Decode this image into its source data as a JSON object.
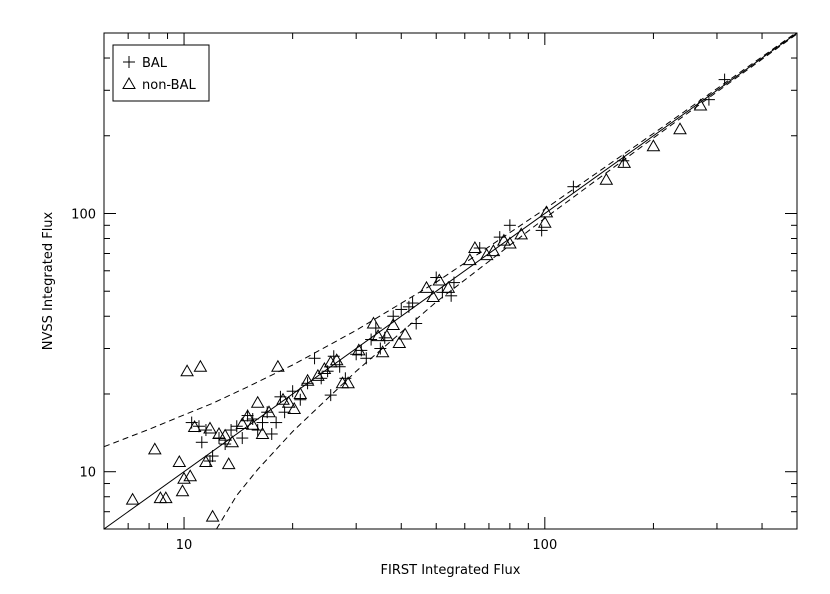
{
  "chart_data": {
    "type": "scatter",
    "title": "",
    "xlabel": "FIRST Integrated Flux",
    "ylabel": "NVSS Integrated Flux",
    "xscale": "log",
    "yscale": "log",
    "xlim": [
      6,
      500
    ],
    "ylim": [
      6,
      500
    ],
    "x_ticks": [
      10,
      100
    ],
    "x_tick_labels": [
      "10",
      "100"
    ],
    "y_ticks": [
      10,
      100
    ],
    "y_tick_labels": [
      "10",
      "100"
    ],
    "grid": false,
    "legend": {
      "placement": "top-left",
      "entries": [
        {
          "marker": "plus",
          "label": "BAL"
        },
        {
          "marker": "triangle",
          "label": "non-BAL"
        }
      ]
    },
    "lines": [
      {
        "style": "solid",
        "description": "one-to-one",
        "x": [
          6,
          500
        ],
        "y": [
          6,
          500
        ]
      },
      {
        "style": "dashed",
        "x": [
          6,
          8,
          10,
          12,
          15,
          20,
          30,
          50,
          100,
          200,
          500
        ],
        "y": [
          12.5,
          14.6,
          16.6,
          18.4,
          21.3,
          25.9,
          35.3,
          54.2,
          104,
          204,
          504
        ]
      },
      {
        "style": "dashed",
        "x": [
          12.3,
          14,
          16,
          20,
          30,
          50,
          100,
          200,
          500
        ],
        "y": [
          6,
          8.1,
          10.2,
          14.3,
          24.5,
          45.4,
          95.8,
          196,
          496
        ]
      }
    ],
    "series": [
      {
        "name": "BAL",
        "marker": "plus",
        "points": [
          [
            10.5,
            15.5
          ],
          [
            11.0,
            15.0
          ],
          [
            11.2,
            13.0
          ],
          [
            11.5,
            14.5
          ],
          [
            11.8,
            11.0
          ],
          [
            12.0,
            11.5
          ],
          [
            12.5,
            13.5
          ],
          [
            13.0,
            12.8
          ],
          [
            13.5,
            14.5
          ],
          [
            14.0,
            15.0
          ],
          [
            14.5,
            13.5
          ],
          [
            15.0,
            16.5
          ],
          [
            15.5,
            16.0
          ],
          [
            16.0,
            14.5
          ],
          [
            16.5,
            15.5
          ],
          [
            17.0,
            17.0
          ],
          [
            17.5,
            14.0
          ],
          [
            18.0,
            15.5
          ],
          [
            18.5,
            19.5
          ],
          [
            19.0,
            17.0
          ],
          [
            20.0,
            20.5
          ],
          [
            21.0,
            19.0
          ],
          [
            22.0,
            22.0
          ],
          [
            23.0,
            27.5
          ],
          [
            24.0,
            23.0
          ],
          [
            25.0,
            24.5
          ],
          [
            25.5,
            19.8
          ],
          [
            26.0,
            28.0
          ],
          [
            27.0,
            25.5
          ],
          [
            28.0,
            23.0
          ],
          [
            30.0,
            28.5
          ],
          [
            31.0,
            29.5
          ],
          [
            32.0,
            27.5
          ],
          [
            33.0,
            32.5
          ],
          [
            34.0,
            36.0
          ],
          [
            35.0,
            30.0
          ],
          [
            36.0,
            33.0
          ],
          [
            38.0,
            40.0
          ],
          [
            40.0,
            42.5
          ],
          [
            42.0,
            43.5
          ],
          [
            43.0,
            45.0
          ],
          [
            44.0,
            37.5
          ],
          [
            50.0,
            56.5
          ],
          [
            52.0,
            49.5
          ],
          [
            55.0,
            48.0
          ],
          [
            56.0,
            54.0
          ],
          [
            66.0,
            73.5
          ],
          [
            75.0,
            81.0
          ],
          [
            80.0,
            90.0
          ],
          [
            98.0,
            86.0
          ],
          [
            120.0,
            127.0
          ],
          [
            165.0,
            160.0
          ],
          [
            285.0,
            276.0
          ],
          [
            315.0,
            330.0
          ]
        ]
      },
      {
        "name": "non-BAL",
        "marker": "triangle",
        "points": [
          [
            7.2,
            7.8
          ],
          [
            8.3,
            12.2
          ],
          [
            8.6,
            7.9
          ],
          [
            8.9,
            7.9
          ],
          [
            9.7,
            10.9
          ],
          [
            9.9,
            8.4
          ],
          [
            10.0,
            9.4
          ],
          [
            10.2,
            24.5
          ],
          [
            10.4,
            9.6
          ],
          [
            10.7,
            14.9
          ],
          [
            11.1,
            25.5
          ],
          [
            11.5,
            10.9
          ],
          [
            11.8,
            14.7
          ],
          [
            12.0,
            6.7
          ],
          [
            12.5,
            14.0
          ],
          [
            13.0,
            13.8
          ],
          [
            13.3,
            10.7
          ],
          [
            13.6,
            13.0
          ],
          [
            14.5,
            15.3
          ],
          [
            15.0,
            16.4
          ],
          [
            15.5,
            15.2
          ],
          [
            16.0,
            18.5
          ],
          [
            16.5,
            14.0
          ],
          [
            17.2,
            17.0
          ],
          [
            18.2,
            25.5
          ],
          [
            18.8,
            19.0
          ],
          [
            19.5,
            18.5
          ],
          [
            20.2,
            17.5
          ],
          [
            21.0,
            20.0
          ],
          [
            22.0,
            22.5
          ],
          [
            23.5,
            23.5
          ],
          [
            24.5,
            25.0
          ],
          [
            25.5,
            26.5
          ],
          [
            26.5,
            27.0
          ],
          [
            27.5,
            22.0
          ],
          [
            28.5,
            22.0
          ],
          [
            30.5,
            29.5
          ],
          [
            33.5,
            37.5
          ],
          [
            34.5,
            33.5
          ],
          [
            35.5,
            29.0
          ],
          [
            36.5,
            33.5
          ],
          [
            38.0,
            37.0
          ],
          [
            39.5,
            31.5
          ],
          [
            41.0,
            34.0
          ],
          [
            47.0,
            51.5
          ],
          [
            49.0,
            47.5
          ],
          [
            51.0,
            55.0
          ],
          [
            54.0,
            51.5
          ],
          [
            62.0,
            66.0
          ],
          [
            64.0,
            73.5
          ],
          [
            69.0,
            69.0
          ],
          [
            72.0,
            71.5
          ],
          [
            77.0,
            78.5
          ],
          [
            80.0,
            76.5
          ],
          [
            86.0,
            83.0
          ],
          [
            100.0,
            92.0
          ],
          [
            101.0,
            101.0
          ],
          [
            148.0,
            135.0
          ],
          [
            166.0,
            157.0
          ],
          [
            200.0,
            182.0
          ],
          [
            237.0,
            212.0
          ],
          [
            270.0,
            262.0
          ]
        ]
      }
    ]
  }
}
